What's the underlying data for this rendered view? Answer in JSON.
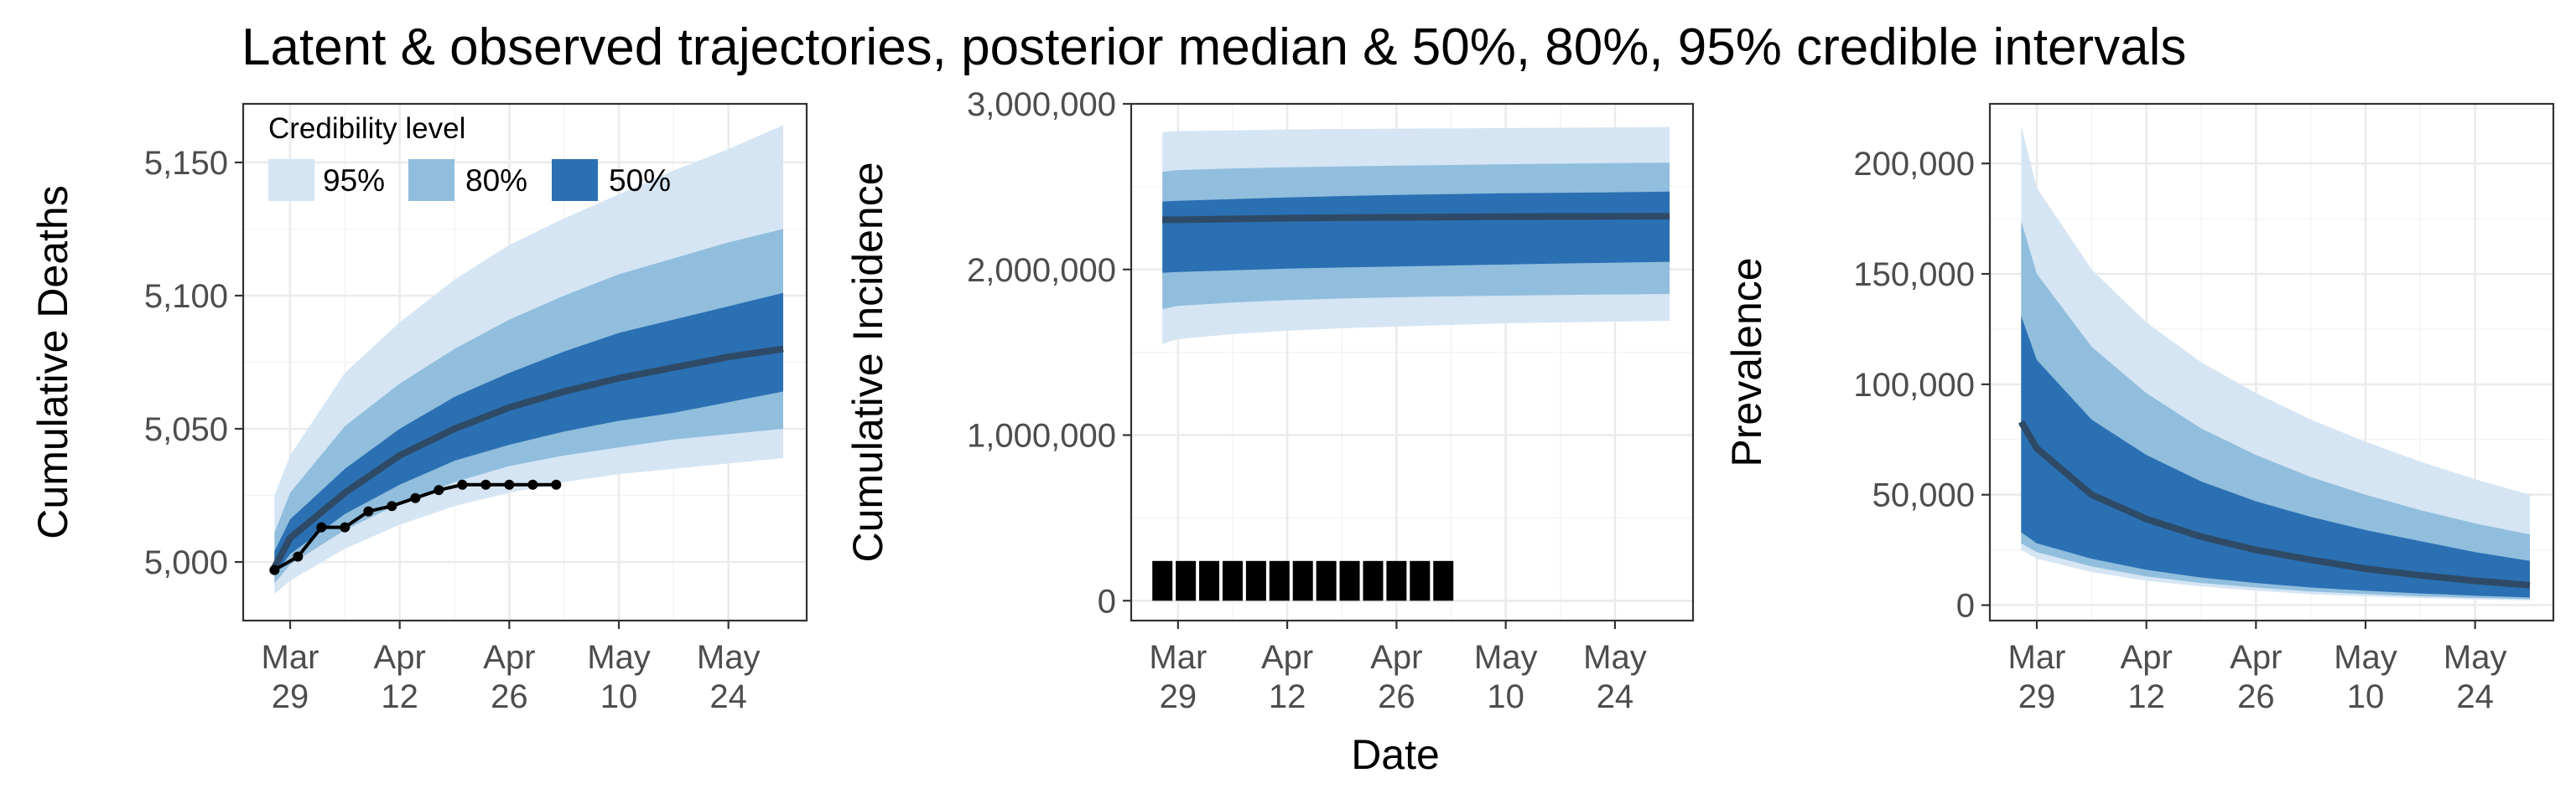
{
  "title": "Latent & observed trajectories, posterior median & 50%, 80%, 95% credible intervals",
  "x_axis_title": "Date",
  "x_ticks": [
    {
      "month": "Mar",
      "day": "29",
      "d": 0
    },
    {
      "month": "Apr",
      "day": "12",
      "d": 14
    },
    {
      "month": "Apr",
      "day": "26",
      "d": 28
    },
    {
      "month": "May",
      "day": "10",
      "d": 42
    },
    {
      "month": "May",
      "day": "24",
      "d": 56
    }
  ],
  "colors": {
    "ci95": "#d5e5f4",
    "ci80": "#91bedd",
    "ci50": "#2b70b3",
    "median": "#2e4a66",
    "observed": "#000000"
  },
  "legend": {
    "title": "Credibility level",
    "items": [
      {
        "label": "95%",
        "color": "#d5e5f4"
      },
      {
        "label": "80%",
        "color": "#91bedd"
      },
      {
        "label": "50%",
        "color": "#2b70b3"
      }
    ]
  },
  "chart_data": [
    {
      "type": "area",
      "ylabel": "Cumulative Deaths",
      "xlabel": "",
      "xlim": [
        "2020-03-23",
        "2020-06-03"
      ],
      "ylim": [
        4978,
        5172
      ],
      "y_ticks": [
        5000,
        5050,
        5100,
        5150
      ],
      "y_tick_labels": [
        "5,000",
        "5,050",
        "5,100",
        "5,150"
      ],
      "x": [
        "2020-03-27",
        "2020-03-29",
        "2020-04-05",
        "2020-04-12",
        "2020-04-19",
        "2020-04-26",
        "2020-05-03",
        "2020-05-10",
        "2020-05-17",
        "2020-05-24",
        "2020-05-31"
      ],
      "series": [
        {
          "name": "95%",
          "lower": [
            4988,
            4993,
            5005,
            5014,
            5021,
            5026,
            5030,
            5033,
            5035,
            5037,
            5039
          ],
          "upper": [
            5025,
            5040,
            5071,
            5090,
            5106,
            5119,
            5129,
            5138,
            5147,
            5155,
            5164
          ]
        },
        {
          "name": "80%",
          "lower": [
            4992,
            4999,
            5012,
            5022,
            5030,
            5036,
            5040,
            5043,
            5046,
            5048,
            5050
          ],
          "upper": [
            5011,
            5026,
            5051,
            5067,
            5080,
            5091,
            5100,
            5108,
            5114,
            5120,
            5125
          ]
        },
        {
          "name": "50%",
          "lower": [
            4995,
            5003,
            5018,
            5029,
            5038,
            5044,
            5049,
            5053,
            5056,
            5060,
            5064
          ],
          "upper": [
            5004,
            5016,
            5035,
            5050,
            5062,
            5071,
            5079,
            5086,
            5091,
            5096,
            5101
          ]
        },
        {
          "name": "median",
          "values": [
            4998,
            5009,
            5026,
            5040,
            5050,
            5058,
            5064,
            5069,
            5073,
            5077,
            5080
          ]
        }
      ],
      "observed": {
        "x": [
          "2020-03-27",
          "2020-03-30",
          "2020-04-02",
          "2020-04-05",
          "2020-04-08",
          "2020-04-11",
          "2020-04-14",
          "2020-04-17",
          "2020-04-20",
          "2020-04-23",
          "2020-04-26",
          "2020-04-29",
          "2020-05-02"
        ],
        "values": [
          4997,
          5002,
          5013,
          5013,
          5019,
          5021,
          5024,
          5027,
          5029,
          5029,
          5029,
          5029,
          5029
        ]
      }
    },
    {
      "type": "area",
      "ylabel": "Cumulative Incidence",
      "xlabel": "Date",
      "xlim": [
        "2020-03-23",
        "2020-06-03"
      ],
      "ylim": [
        -120000,
        3000000
      ],
      "y_ticks": [
        0,
        1000000,
        2000000,
        3000000
      ],
      "y_tick_labels": [
        "0",
        "1,000,000",
        "2,000,000",
        "3,000,000"
      ],
      "x": [
        "2020-03-27",
        "2020-03-29",
        "2020-04-05",
        "2020-04-12",
        "2020-04-19",
        "2020-04-26",
        "2020-05-03",
        "2020-05-10",
        "2020-05-17",
        "2020-05-24",
        "2020-05-31"
      ],
      "series": [
        {
          "name": "95%",
          "lower": [
            1550000,
            1580000,
            1610000,
            1630000,
            1645000,
            1655000,
            1665000,
            1675000,
            1680000,
            1685000,
            1690000
          ],
          "upper": [
            2830000,
            2835000,
            2840000,
            2845000,
            2848000,
            2850000,
            2852000,
            2854000,
            2856000,
            2858000,
            2860000
          ]
        },
        {
          "name": "80%",
          "lower": [
            1760000,
            1780000,
            1800000,
            1815000,
            1825000,
            1832000,
            1838000,
            1842000,
            1846000,
            1849000,
            1852000
          ],
          "upper": [
            2590000,
            2600000,
            2610000,
            2617000,
            2622000,
            2627000,
            2631000,
            2635000,
            2639000,
            2642000,
            2645000
          ]
        },
        {
          "name": "50%",
          "lower": [
            1980000,
            1985000,
            1995000,
            2005000,
            2012000,
            2018000,
            2024000,
            2030000,
            2036000,
            2041000,
            2046000
          ],
          "upper": [
            2410000,
            2415000,
            2425000,
            2435000,
            2443000,
            2450000,
            2455000,
            2460000,
            2463000,
            2466000,
            2470000
          ]
        },
        {
          "name": "median",
          "values": [
            2300000,
            2300000,
            2305000,
            2310000,
            2313000,
            2315000,
            2317000,
            2319000,
            2320000,
            2321000,
            2322000
          ]
        }
      ],
      "observed": {
        "x": [
          "2020-03-27",
          "2020-03-30",
          "2020-04-02",
          "2020-04-05",
          "2020-04-08",
          "2020-04-11",
          "2020-04-14",
          "2020-04-17",
          "2020-04-20",
          "2020-04-23",
          "2020-04-26",
          "2020-04-29",
          "2020-05-02"
        ],
        "values": [
          240000,
          240000,
          240000,
          240000,
          240000,
          240000,
          240000,
          240000,
          240000,
          240000,
          240000,
          240000,
          240000
        ],
        "markers": "bars"
      }
    },
    {
      "type": "area",
      "ylabel": "Prevalence",
      "xlabel": "",
      "xlim": [
        "2020-03-23",
        "2020-06-03"
      ],
      "ylim": [
        -7000,
        227000
      ],
      "y_ticks": [
        0,
        50000,
        100000,
        150000,
        200000
      ],
      "y_tick_labels": [
        "0",
        "50,000",
        "100,000",
        "150,000",
        "200,000"
      ],
      "x": [
        "2020-03-27",
        "2020-03-29",
        "2020-04-05",
        "2020-04-12",
        "2020-04-19",
        "2020-04-26",
        "2020-05-03",
        "2020-05-10",
        "2020-05-17",
        "2020-05-24",
        "2020-05-31"
      ],
      "series": [
        {
          "name": "95%",
          "lower": [
            25000,
            21000,
            15000,
            11000,
            8500,
            6500,
            5000,
            4000,
            3200,
            2600,
            2100
          ],
          "upper": [
            217000,
            189000,
            152000,
            128000,
            110000,
            96000,
            84000,
            74000,
            65000,
            57000,
            50000
          ]
        },
        {
          "name": "80%",
          "lower": [
            28000,
            24000,
            17500,
            13000,
            10000,
            8000,
            6200,
            5000,
            4000,
            3300,
            2700
          ],
          "upper": [
            174000,
            150000,
            117000,
            96000,
            80000,
            68000,
            58000,
            50000,
            43000,
            37000,
            32000
          ]
        },
        {
          "name": "50%",
          "lower": [
            33000,
            28000,
            21000,
            16000,
            12500,
            10000,
            8000,
            6500,
            5300,
            4300,
            3500
          ],
          "upper": [
            131000,
            111000,
            84000,
            68000,
            56000,
            47000,
            40000,
            34000,
            29000,
            24000,
            20000
          ]
        },
        {
          "name": "median",
          "values": [
            83000,
            71000,
            50000,
            39000,
            31000,
            25000,
            20500,
            16500,
            13500,
            11000,
            9000
          ]
        }
      ]
    }
  ]
}
